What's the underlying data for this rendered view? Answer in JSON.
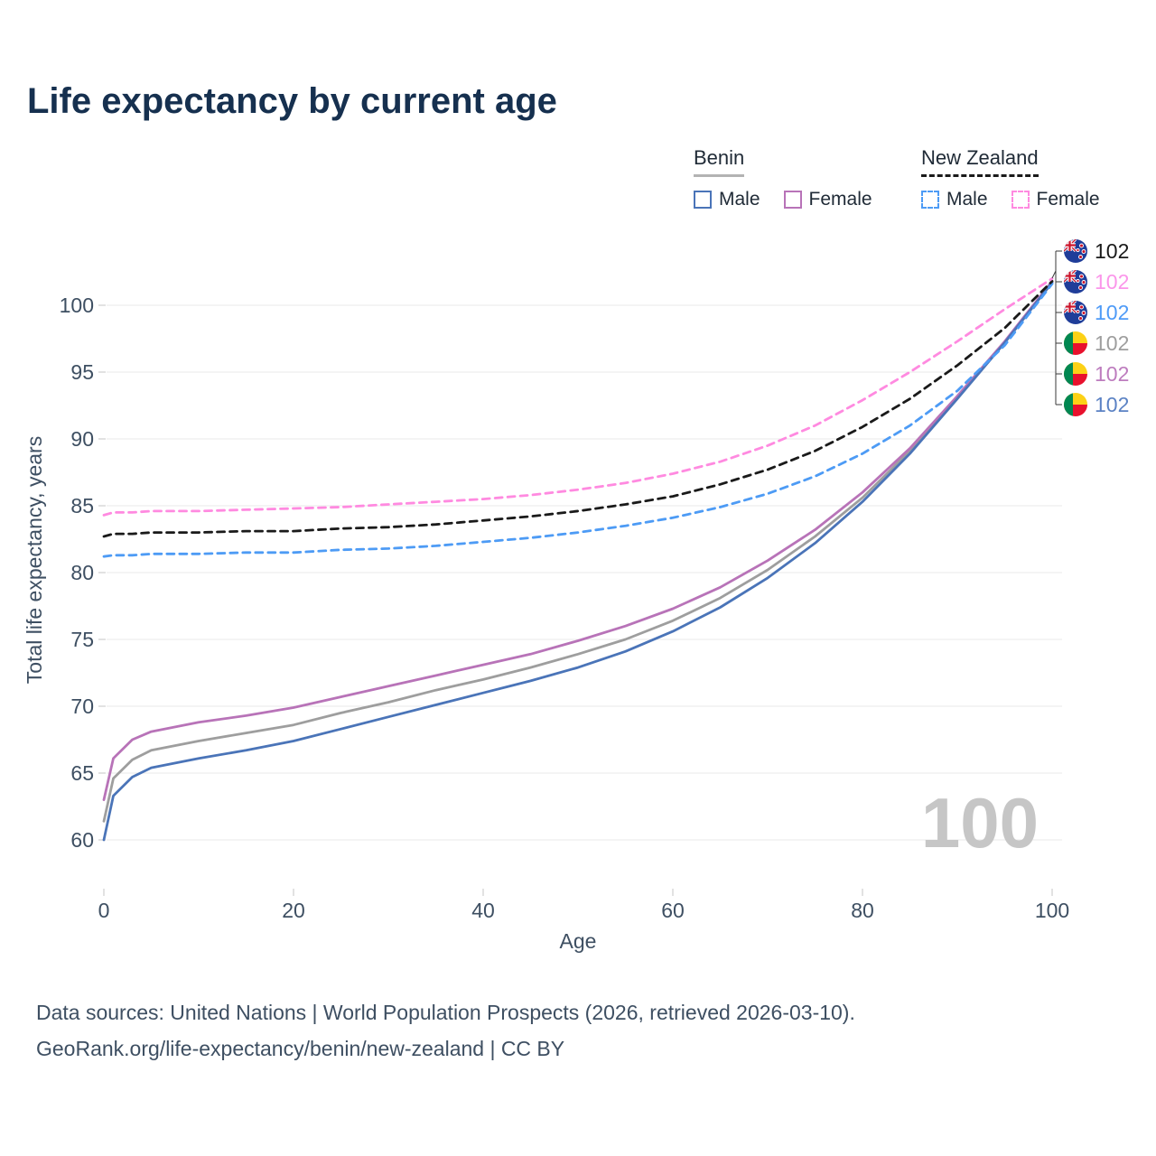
{
  "title": "Life expectancy by current age",
  "legend": {
    "benin": {
      "name": "Benin",
      "male_label": "Male",
      "female_label": "Female"
    },
    "new_zealand": {
      "name": "New Zealand",
      "male_label": "Male",
      "female_label": "Female"
    }
  },
  "colors": {
    "benin_male": "#4a74b8",
    "benin_female": "#b873b8",
    "benin_total": "#9e9e9e",
    "nz_male": "#4d9bf5",
    "nz_female": "#ff8ae0",
    "nz_total": "#1a1a1a",
    "title_text": "#16304f",
    "axis_text": "#3e4f62",
    "watermark": "#c6c6c6"
  },
  "watermark": "100",
  "chart_data": {
    "type": "line",
    "title": "Life expectancy by current age",
    "xlabel": "Age",
    "ylabel": "Total life expectancy, years",
    "xlim": [
      0,
      100
    ],
    "ylim": [
      58,
      103
    ],
    "xticks": [
      0,
      20,
      40,
      60,
      80,
      100
    ],
    "yticks": [
      60,
      65,
      70,
      75,
      80,
      85,
      90,
      95,
      100
    ],
    "grid": "horizontal",
    "legend_position": "top-right",
    "x": [
      0,
      1,
      3,
      5,
      10,
      15,
      20,
      25,
      30,
      35,
      40,
      45,
      50,
      55,
      60,
      65,
      70,
      75,
      80,
      85,
      90,
      95,
      100
    ],
    "series": [
      {
        "name": "Benin Total",
        "color": "#9e9e9e",
        "dash": "solid",
        "values": [
          61.4,
          64.6,
          66.0,
          66.7,
          67.4,
          68.0,
          68.6,
          69.5,
          70.3,
          71.2,
          72.0,
          72.9,
          73.9,
          75.0,
          76.4,
          78.1,
          80.2,
          82.7,
          85.6,
          89.1,
          93.1,
          97.2,
          101.7
        ]
      },
      {
        "name": "Benin Female",
        "color": "#b873b8",
        "dash": "solid",
        "values": [
          63.0,
          66.1,
          67.5,
          68.1,
          68.8,
          69.3,
          69.9,
          70.7,
          71.5,
          72.3,
          73.1,
          73.9,
          74.9,
          76.0,
          77.3,
          78.9,
          80.9,
          83.2,
          86.0,
          89.3,
          93.2,
          97.3,
          101.8
        ]
      },
      {
        "name": "Benin Male",
        "color": "#4a74b8",
        "dash": "solid",
        "values": [
          60.0,
          63.3,
          64.7,
          65.4,
          66.1,
          66.7,
          67.4,
          68.3,
          69.2,
          70.1,
          71.0,
          71.9,
          72.9,
          74.1,
          75.6,
          77.4,
          79.6,
          82.2,
          85.3,
          88.9,
          93.0,
          97.2,
          101.7
        ]
      },
      {
        "name": "New Zealand Male",
        "color": "#4d9bf5",
        "dash": "dashed",
        "values": [
          81.2,
          81.3,
          81.3,
          81.4,
          81.4,
          81.5,
          81.5,
          81.7,
          81.8,
          82.0,
          82.3,
          82.6,
          83.0,
          83.5,
          84.1,
          84.9,
          85.9,
          87.2,
          88.9,
          91.0,
          93.6,
          97.0,
          101.6
        ]
      },
      {
        "name": "New Zealand Total",
        "color": "#1a1a1a",
        "dash": "dashed",
        "values": [
          82.7,
          82.9,
          82.9,
          83.0,
          83.0,
          83.1,
          83.1,
          83.3,
          83.4,
          83.6,
          83.9,
          84.2,
          84.6,
          85.1,
          85.7,
          86.6,
          87.7,
          89.1,
          90.9,
          93.0,
          95.5,
          98.3,
          101.8
        ]
      },
      {
        "name": "New Zealand Female",
        "color": "#ff8ae0",
        "dash": "dashed",
        "values": [
          84.3,
          84.5,
          84.5,
          84.6,
          84.6,
          84.7,
          84.8,
          84.9,
          85.1,
          85.3,
          85.5,
          85.8,
          86.2,
          86.7,
          87.4,
          88.3,
          89.5,
          91.0,
          92.9,
          95.0,
          97.3,
          99.7,
          102.0
        ]
      }
    ]
  },
  "end_labels": [
    {
      "country": "new-zealand",
      "value": "102",
      "color": "#1a1a1a"
    },
    {
      "country": "new-zealand",
      "value": "102",
      "color": "#fb96ea"
    },
    {
      "country": "new-zealand",
      "value": "102",
      "color": "#4f9bf7"
    },
    {
      "country": "benin",
      "value": "102",
      "color": "#9e9e9e"
    },
    {
      "country": "benin",
      "value": "102",
      "color": "#bd7cbe"
    },
    {
      "country": "benin",
      "value": "102",
      "color": "#5b82c4"
    }
  ],
  "footer": {
    "line1": "Data sources: United Nations | World Population Prospects (2026, retrieved 2026-03-10).",
    "line2": "GeoRank.org/life-expectancy/benin/new-zealand | CC BY"
  }
}
